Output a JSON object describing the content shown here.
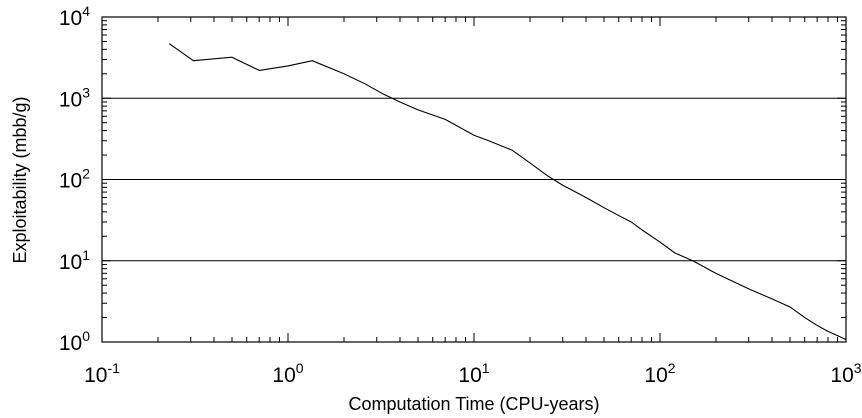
{
  "chart_data": {
    "type": "line",
    "title": "",
    "xlabel": "Computation Time (CPU-years)",
    "ylabel": "Exploitability (mbb/g)",
    "xscale": "log",
    "yscale": "log",
    "xlim": [
      0.1,
      1000
    ],
    "ylim": [
      1,
      10000
    ],
    "grid": "horizontal lines at y = 10, 100, 1000",
    "legend": "none",
    "x_ticks": [
      {
        "base": "10",
        "exp": "-1"
      },
      {
        "base": "10",
        "exp": "0"
      },
      {
        "base": "10",
        "exp": "1"
      },
      {
        "base": "10",
        "exp": "2"
      },
      {
        "base": "10",
        "exp": "3"
      }
    ],
    "y_ticks": [
      {
        "base": "10",
        "exp": "0"
      },
      {
        "base": "10",
        "exp": "1"
      },
      {
        "base": "10",
        "exp": "2"
      },
      {
        "base": "10",
        "exp": "3"
      },
      {
        "base": "10",
        "exp": "4"
      }
    ],
    "series": [
      {
        "color": "#000000",
        "x": [
          0.23,
          0.31,
          0.5,
          0.7,
          1.0,
          1.35,
          2.0,
          2.6,
          3.2,
          4.0,
          5.0,
          7.0,
          10,
          12,
          16,
          20,
          25,
          30,
          40,
          50,
          60,
          70,
          80,
          100,
          120,
          150,
          200,
          300,
          400,
          500,
          600,
          700,
          800,
          900,
          1000
        ],
        "y": [
          4700,
          2900,
          3200,
          2200,
          2500,
          2900,
          2000,
          1500,
          1150,
          900,
          720,
          550,
          350,
          300,
          230,
          160,
          110,
          85,
          60,
          45,
          36,
          30,
          24,
          17,
          12.5,
          10,
          7.0,
          4.5,
          3.4,
          2.7,
          2.0,
          1.6,
          1.35,
          1.2,
          1.07
        ]
      }
    ]
  }
}
